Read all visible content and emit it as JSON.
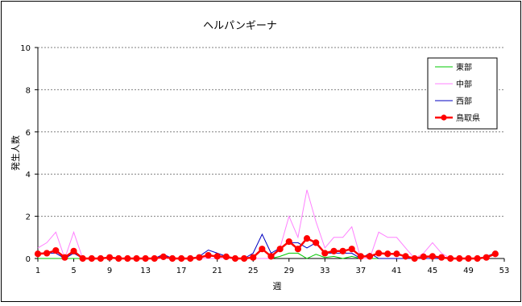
{
  "chart_data": {
    "type": "line",
    "title": "ヘルパンギーナ",
    "xlabel": "週",
    "ylabel": "発生人数",
    "xlim": [
      1,
      53
    ],
    "ylim": [
      0,
      10
    ],
    "x_ticks": [
      1,
      5,
      9,
      13,
      17,
      21,
      25,
      29,
      33,
      37,
      41,
      45,
      49,
      53
    ],
    "y_ticks": [
      0,
      2,
      4,
      6,
      8,
      10
    ],
    "grid": "horizontal",
    "legend_position": "top-right",
    "x": [
      1,
      2,
      3,
      4,
      5,
      6,
      7,
      8,
      9,
      10,
      11,
      12,
      13,
      14,
      15,
      16,
      17,
      18,
      19,
      20,
      21,
      22,
      23,
      24,
      25,
      26,
      27,
      28,
      29,
      30,
      31,
      32,
      33,
      34,
      35,
      36,
      37,
      38,
      39,
      40,
      41,
      42,
      43,
      44,
      45,
      46,
      47,
      48,
      49,
      50,
      51,
      52
    ],
    "series": [
      {
        "name": "東部",
        "color": "#00c800",
        "marker": "none",
        "values": [
          0,
          0,
          0,
          0,
          0,
          0,
          0,
          0,
          0,
          0,
          0,
          0,
          0,
          0,
          0,
          0,
          0,
          0,
          0,
          0,
          0,
          0,
          0,
          0,
          0,
          0,
          0,
          0.1,
          0.25,
          0.25,
          0,
          0.2,
          0.05,
          0.1,
          0,
          0.1,
          0,
          0,
          0,
          0,
          0,
          0,
          0,
          0,
          0,
          0,
          0,
          0,
          0,
          0,
          0.05,
          0.3
        ]
      },
      {
        "name": "中部",
        "color": "#ff80ff",
        "marker": "none",
        "values": [
          0.5,
          0.75,
          1.25,
          0,
          1.25,
          0,
          0,
          0,
          0,
          0,
          0,
          0,
          0,
          0,
          0,
          0,
          0,
          0,
          0,
          0,
          0,
          0,
          0,
          0,
          0,
          0,
          0,
          0.5,
          2,
          1,
          3.25,
          1.75,
          0.5,
          1,
          1,
          1.5,
          0,
          0,
          1.25,
          1,
          1,
          0.5,
          0,
          0.25,
          0.75,
          0.25,
          0,
          0,
          0,
          0,
          0,
          0.25
        ]
      },
      {
        "name": "西部",
        "color": "#0000c0",
        "marker": "none",
        "values": [
          0.25,
          0.25,
          0.25,
          0,
          0.25,
          0,
          0,
          0,
          0,
          0,
          0,
          0,
          0,
          0,
          0.2,
          0,
          0,
          0,
          0.1,
          0.4,
          0.25,
          0.1,
          0,
          0,
          0.25,
          1.15,
          0.25,
          0.5,
          0.75,
          0.75,
          0.5,
          0.75,
          0.25,
          0.25,
          0.25,
          0.25,
          0,
          0.25,
          0,
          0,
          0,
          0,
          0,
          0,
          0,
          0,
          0,
          0,
          0,
          0,
          0.1,
          0.25
        ]
      },
      {
        "name": "鳥取県",
        "color": "#ff0000",
        "marker": "circle",
        "values": [
          0.22,
          0.25,
          0.38,
          0.05,
          0.35,
          0,
          0,
          0,
          0.05,
          0,
          0,
          0,
          0,
          0,
          0.08,
          0,
          0,
          0,
          0.05,
          0.15,
          0.1,
          0.08,
          0,
          0,
          0.05,
          0.45,
          0.1,
          0.45,
          0.8,
          0.45,
          0.95,
          0.75,
          0.25,
          0.35,
          0.35,
          0.45,
          0.1,
          0.1,
          0.25,
          0.22,
          0.22,
          0.1,
          0,
          0.08,
          0.1,
          0.05,
          0,
          0,
          0,
          0,
          0.05,
          0.22
        ]
      }
    ]
  }
}
